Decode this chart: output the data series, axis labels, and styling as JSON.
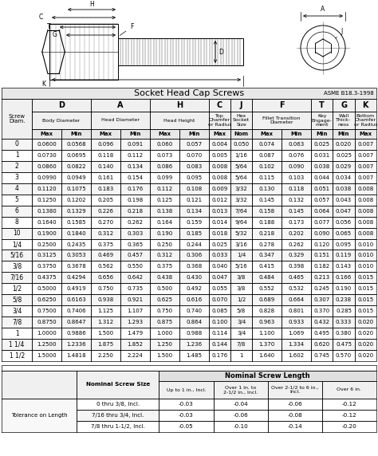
{
  "title": "Socket Head Cap Screws",
  "standard": "ASME B18.3-1998",
  "screw_col": "Screw\nDiam.",
  "rows": [
    [
      "0",
      "0.0600",
      "0.0568",
      "0.096",
      "0.091",
      "0.060",
      "0.057",
      "0.004",
      "0.050",
      "0.074",
      "0.063",
      "0.025",
      "0.020",
      "0.007"
    ],
    [
      "1",
      "0.0730",
      "0.0695",
      "0.118",
      "0.112",
      "0.073",
      "0.070",
      "0.005",
      "1/16",
      "0.087",
      "0.076",
      "0.031",
      "0.025",
      "0.007"
    ],
    [
      "2",
      "0.0860",
      "0.0822",
      "0.140",
      "0.134",
      "0.086",
      "0.083",
      "0.008",
      "5/64",
      "0.102",
      "0.090",
      "0.038",
      "0.029",
      "0.007"
    ],
    [
      "3",
      "0.0990",
      "0.0949",
      "0.161",
      "0.154",
      "0.099",
      "0.095",
      "0.008",
      "5/64",
      "0.115",
      "0.103",
      "0.044",
      "0.034",
      "0.007"
    ],
    [
      "4",
      "0.1120",
      "0.1075",
      "0.183",
      "0.176",
      "0.112",
      "0.108",
      "0.009",
      "3/32",
      "0.130",
      "0.118",
      "0.051",
      "0.038",
      "0.008"
    ],
    [
      "5",
      "0.1250",
      "0.1202",
      "0.205",
      "0.198",
      "0.125",
      "0.121",
      "0.012",
      "3/32",
      "0.145",
      "0.132",
      "0.057",
      "0.043",
      "0.008"
    ],
    [
      "6",
      "0.1380",
      "0.1329",
      "0.226",
      "0.218",
      "0.138",
      "0.134",
      "0.013",
      "7/64",
      "0.158",
      "0.145",
      "0.064",
      "0.047",
      "0.008"
    ],
    [
      "8",
      "0.1640",
      "0.1585",
      "0.270",
      "0.262",
      "0.164",
      "0.159",
      "0.014",
      "9/64",
      "0.188",
      "0.173",
      "0.077",
      "0.056",
      "0.008"
    ],
    [
      "10",
      "0.1900",
      "0.1840",
      "0.312",
      "0.303",
      "0.190",
      "0.185",
      "0.018",
      "5/32",
      "0.218",
      "0.202",
      "0.090",
      "0.065",
      "0.008"
    ],
    [
      "1/4",
      "0.2500",
      "0.2435",
      "0.375",
      "0.365",
      "0.250",
      "0.244",
      "0.025",
      "3/16",
      "0.278",
      "0.262",
      "0.120",
      "0.095",
      "0.010"
    ],
    [
      "5/16",
      "0.3125",
      "0.3053",
      "0.469",
      "0.457",
      "0.312",
      "0.306",
      "0.033",
      "1/4",
      "0.347",
      "0.329",
      "0.151",
      "0.119",
      "0.010"
    ],
    [
      "3/8",
      "0.3750",
      "0.3678",
      "0.562",
      "0.550",
      "0.375",
      "0.368",
      "0.040",
      "5/16",
      "0.415",
      "0.398",
      "0.182",
      "0.143",
      "0.010"
    ],
    [
      "7/16",
      "0.4375",
      "0.4294",
      "0.656",
      "0.642",
      "0.438",
      "0.430",
      "0.047",
      "3/8",
      "0.484",
      "0.465",
      "0.213",
      "0.166",
      "0.015"
    ],
    [
      "1/2",
      "0.5000",
      "0.4919",
      "0.750",
      "0.735",
      "0.500",
      "0.492",
      "0.055",
      "3/8",
      "0.552",
      "0.532",
      "0.245",
      "0.190",
      "0.015"
    ],
    [
      "5/8",
      "0.6250",
      "0.6163",
      "0.938",
      "0.921",
      "0.625",
      "0.616",
      "0.070",
      "1/2",
      "0.689",
      "0.664",
      "0.307",
      "0.238",
      "0.015"
    ],
    [
      "3/4",
      "0.7500",
      "0.7406",
      "1.125",
      "1.107",
      "0.750",
      "0.740",
      "0.085",
      "5/8",
      "0.828",
      "0.801",
      "0.370",
      "0.285",
      "0.015"
    ],
    [
      "7/8",
      "0.8750",
      "0.8647",
      "1.312",
      "1.293",
      "0.875",
      "0.864",
      "0.100",
      "3/4",
      "0.963",
      "0.933",
      "0.432",
      "0.333",
      "0.020"
    ],
    [
      "1",
      "1.0000",
      "0.9886",
      "1.500",
      "1.479",
      "1.000",
      "0.988",
      "0.114",
      "3/4",
      "1.100",
      "1.069",
      "0.495",
      "0.380",
      "0.020"
    ],
    [
      "1 1/4",
      "1.2500",
      "1.2336",
      "1.875",
      "1.852",
      "1.250",
      "1.236",
      "0.144",
      "7/8",
      "1.370",
      "1.334",
      "0.620",
      "0.475",
      "0.020"
    ],
    [
      "1 1/2",
      "1.5000",
      "1.4818",
      "2.250",
      "2.224",
      "1.500",
      "1.485",
      "0.176",
      "1",
      "1.640",
      "1.602",
      "0.745",
      "0.570",
      "0.020"
    ]
  ],
  "tolerance_rows": [
    [
      "0 thru 3/8, Incl.",
      "-0.03",
      "-0.04",
      "-0.06",
      "-0.12"
    ],
    [
      "7/16 thru 3/4, Incl.",
      "-0.03",
      "-0.06",
      "-0.08",
      "-0.12"
    ],
    [
      "7/8 thru 1-1/2, Incl.",
      "-0.05",
      "-0.10",
      "-0.14",
      "-0.20"
    ]
  ],
  "bg_color": "#ffffff",
  "text_color": "#000000"
}
